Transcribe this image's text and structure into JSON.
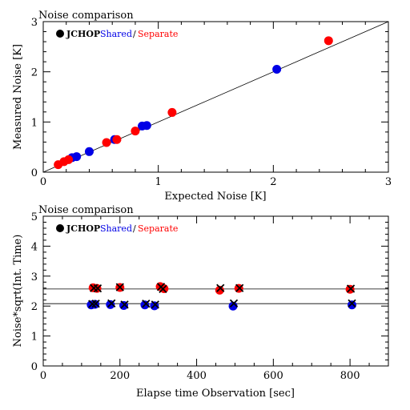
{
  "chart_data": [
    {
      "type": "scatter",
      "title": "Noise comparison",
      "legend": {
        "placement": "top-left",
        "marker_label": "JCHOP",
        "shared_label": "Shared",
        "slash": "/",
        "separate_label": "Separate"
      },
      "xlabel": "Expected Noise [K]",
      "ylabel": "Measured Noise [K]",
      "xlim": [
        0,
        3
      ],
      "ylim": [
        0,
        3
      ],
      "xticks": [
        "0",
        "1",
        "2",
        "3"
      ],
      "yticks": [
        "0",
        "1",
        "2",
        "3"
      ],
      "grid": false,
      "reference_line": {
        "slope": 1,
        "intercept": 0
      },
      "colors": {
        "shared": "#0000e6",
        "separate": "#ff0000",
        "jchop": "#000000"
      },
      "series": [
        {
          "name": "Shared",
          "points": [
            [
              0.25,
              0.29
            ],
            [
              0.29,
              0.31
            ],
            [
              0.4,
              0.41
            ],
            [
              0.62,
              0.65
            ],
            [
              0.86,
              0.92
            ],
            [
              0.9,
              0.93
            ],
            [
              2.03,
              2.05
            ]
          ]
        },
        {
          "name": "Separate",
          "points": [
            [
              0.13,
              0.15
            ],
            [
              0.18,
              0.21
            ],
            [
              0.22,
              0.25
            ],
            [
              0.55,
              0.59
            ],
            [
              0.64,
              0.65
            ],
            [
              0.8,
              0.82
            ],
            [
              1.12,
              1.19
            ],
            [
              2.48,
              2.62
            ]
          ]
        }
      ]
    },
    {
      "type": "scatter",
      "title": "Noise comparison",
      "legend": {
        "placement": "top-left",
        "marker_label": "JCHOP",
        "shared_label": "Shared",
        "slash": "/",
        "separate_label": "Separate"
      },
      "xlabel": "Elapse time Observation [sec]",
      "ylabel": "Noise*sqrt(Int. Time)",
      "xlim": [
        0,
        900
      ],
      "ylim": [
        0,
        5
      ],
      "xticks": [
        "0",
        "200",
        "400",
        "600",
        "800"
      ],
      "yticks": [
        "0",
        "1",
        "2",
        "3",
        "4",
        "5"
      ],
      "grid": false,
      "reference_lines": [
        2.57,
        2.08
      ],
      "colors": {
        "shared": "#0000e6",
        "separate": "#ff0000",
        "jchop": "#000000"
      },
      "series": [
        {
          "name": "Shared",
          "points": [
            [
              125,
              2.04
            ],
            [
              135,
              2.06
            ],
            [
              175,
              2.05
            ],
            [
              210,
              2.02
            ],
            [
              265,
              2.04
            ],
            [
              290,
              2.01
            ],
            [
              495,
              2.0
            ],
            [
              805,
              2.04
            ]
          ]
        },
        {
          "name": "Separate",
          "points": [
            [
              130,
              2.61
            ],
            [
              140,
              2.59
            ],
            [
              200,
              2.62
            ],
            [
              305,
              2.65
            ],
            [
              315,
              2.58
            ],
            [
              460,
              2.53
            ],
            [
              510,
              2.59
            ],
            [
              800,
              2.56
            ]
          ]
        },
        {
          "name": "JCHOP",
          "points": [
            [
              128,
              2.07
            ],
            [
              137,
              2.08
            ],
            [
              178,
              2.09
            ],
            [
              212,
              2.05
            ],
            [
              268,
              2.08
            ],
            [
              292,
              2.05
            ],
            [
              497,
              2.09
            ],
            [
              805,
              2.09
            ],
            [
              132,
              2.6
            ],
            [
              142,
              2.59
            ],
            [
              200,
              2.63
            ],
            [
              307,
              2.64
            ],
            [
              312,
              2.57
            ],
            [
              462,
              2.6
            ],
            [
              512,
              2.6
            ],
            [
              802,
              2.58
            ]
          ]
        }
      ]
    }
  ]
}
